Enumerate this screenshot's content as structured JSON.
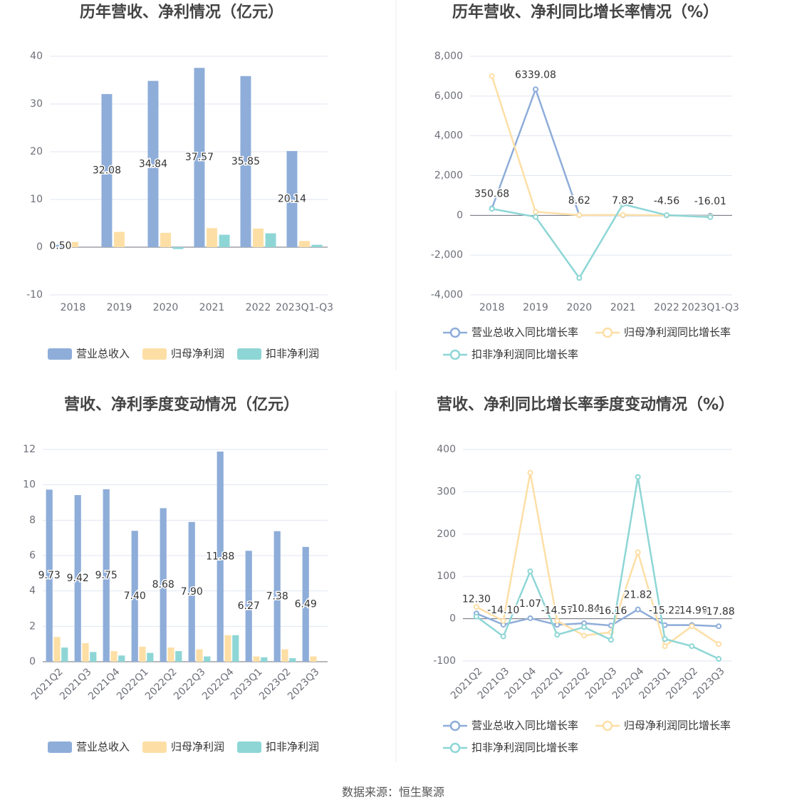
{
  "chart_data": [
    {
      "type": "bar",
      "title": "历年营收、净利情况（亿元）",
      "categories": [
        "2018",
        "2019",
        "2020",
        "2021",
        "2022",
        "2023Q1-Q3"
      ],
      "series": [
        {
          "name": "营业总收入",
          "color": "#8eadd9",
          "values": [
            0.5,
            32.08,
            34.84,
            37.57,
            35.85,
            20.14
          ],
          "value_labels": [
            "0.50",
            "32.08",
            "34.84",
            "37.57",
            "35.85",
            "20.14"
          ]
        },
        {
          "name": "归母净利润",
          "color": "#fddfa6",
          "values": [
            1.1,
            3.2,
            3.0,
            4.0,
            3.9,
            1.3
          ]
        },
        {
          "name": "扣非净利润",
          "color": "#8ed6d6",
          "values": [
            null,
            null,
            -0.4,
            2.6,
            2.9,
            0.5
          ]
        }
      ],
      "ylim": [
        -10,
        40
      ],
      "yticks": [
        -10,
        0,
        10,
        20,
        30,
        40
      ],
      "grid": true,
      "legend": "bottom"
    },
    {
      "type": "line",
      "title": "历年营收、净利同比增长率情况（%）",
      "categories": [
        "2018",
        "2019",
        "2020",
        "2021",
        "2022",
        "2023Q1-Q3"
      ],
      "series": [
        {
          "name": "营业总收入同比增长率",
          "color": "#8eadd9",
          "values": [
            350.68,
            6339.08,
            8.62,
            7.82,
            -4.56,
            -16.01
          ],
          "value_labels": [
            "350.68",
            "6339.08",
            "8.62",
            "7.82",
            "-4.56",
            "-16.01"
          ]
        },
        {
          "name": "归母净利润同比增长率",
          "color": "#fddfa6",
          "values": [
            7000,
            180,
            10,
            20,
            0,
            -60
          ]
        },
        {
          "name": "扣非净利润同比增长率",
          "color": "#8ed6d6",
          "values": [
            330,
            -80,
            -3150,
            560,
            10,
            -90
          ]
        }
      ],
      "ylim": [
        -4000,
        8000
      ],
      "yticks": [
        {
          "value": -4000,
          "label": "-4,000"
        },
        {
          "value": -2000,
          "label": "-2,000"
        },
        0,
        {
          "value": 2000,
          "label": "2,000"
        },
        {
          "value": 4000,
          "label": "4,000"
        },
        {
          "value": 6000,
          "label": "6,000"
        },
        {
          "value": 8000,
          "label": "8,000"
        }
      ],
      "grid": true,
      "legend": "bottom"
    },
    {
      "type": "bar",
      "title": "营收、净利季度变动情况（亿元）",
      "categories": [
        "2021Q2",
        "2021Q3",
        "2021Q4",
        "2022Q1",
        "2022Q2",
        "2022Q3",
        "2022Q4",
        "2023Q1",
        "2023Q2",
        "2023Q3"
      ],
      "series": [
        {
          "name": "营业总收入",
          "color": "#8eadd9",
          "values": [
            9.73,
            9.42,
            9.75,
            7.4,
            8.68,
            7.9,
            11.88,
            6.27,
            7.38,
            6.49
          ],
          "value_labels": [
            "9.73",
            "9.42",
            "9.75",
            "7.40",
            "8.68",
            "7.90",
            "11.88",
            "6.27",
            "7.38",
            "6.49"
          ]
        },
        {
          "name": "归母净利润",
          "color": "#fddfa6",
          "values": [
            1.4,
            1.05,
            0.6,
            0.85,
            0.8,
            0.7,
            1.5,
            0.3,
            0.7,
            0.3
          ]
        },
        {
          "name": "扣非净利润",
          "color": "#8ed6d6",
          "values": [
            0.8,
            0.55,
            0.35,
            0.5,
            0.6,
            0.3,
            1.5,
            0.25,
            0.2,
            null
          ]
        }
      ],
      "ylim": [
        0,
        12
      ],
      "yticks": [
        0,
        2,
        4,
        6,
        8,
        10,
        12
      ],
      "grid": true,
      "legend": "bottom"
    },
    {
      "type": "line",
      "title": "营收、净利同比增长率季度变动情况（%）",
      "categories": [
        "2021Q2",
        "2021Q3",
        "2021Q4",
        "2022Q1",
        "2022Q2",
        "2022Q3",
        "2022Q4",
        "2023Q1",
        "2023Q2",
        "2023Q3"
      ],
      "series": [
        {
          "name": "营业总收入同比增长率",
          "color": "#8eadd9",
          "values": [
            12.3,
            -14.1,
            1.07,
            -14.57,
            -10.84,
            -16.16,
            21.82,
            -15.22,
            -14.98,
            -17.88
          ],
          "value_labels": [
            "12.30",
            "-14.10",
            "1.07",
            "-14.57",
            "-10.84",
            "-16.16",
            "21.82",
            "-15.22",
            "-14.98",
            "-17.88"
          ]
        },
        {
          "name": "归母净利润同比增长率",
          "color": "#fddfa6",
          "values": [
            28,
            -5,
            345,
            -5,
            -40,
            -32,
            157,
            -65,
            -18,
            -60
          ]
        },
        {
          "name": "扣非净利润同比增长率",
          "color": "#8ed6d6",
          "values": [
            5,
            -42,
            112,
            -38,
            -20,
            -50,
            335,
            -48,
            -65,
            -95
          ]
        }
      ],
      "ylim": [
        -100,
        400
      ],
      "yticks": [
        -100,
        0,
        100,
        200,
        300,
        400
      ],
      "grid": true,
      "legend": "bottom"
    }
  ],
  "source": "数据来源：恒生聚源"
}
